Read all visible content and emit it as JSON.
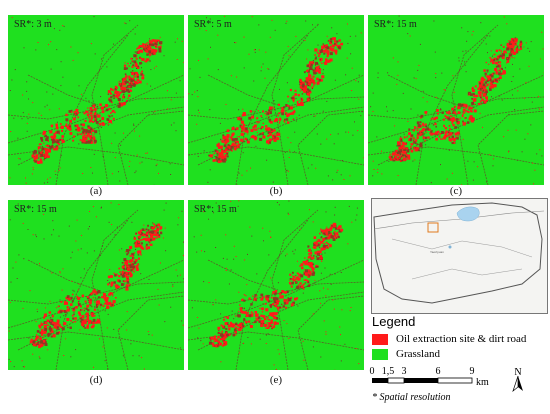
{
  "panels": [
    {
      "sr_label": "SR*: 3 m",
      "caption": "(a)"
    },
    {
      "sr_label": "SR*: 5 m",
      "caption": "(b)"
    },
    {
      "sr_label": "SR*: 15 m",
      "caption": "(c)"
    },
    {
      "sr_label": "SR*: 15 m",
      "caption": "(d)"
    },
    {
      "sr_label": "SR*: 15 m",
      "caption": "(e)"
    }
  ],
  "legend": {
    "title": "Legend",
    "items": [
      {
        "label": "Oil extraction site & dirt road",
        "color": "#ff1a1a"
      },
      {
        "label": "Grassland",
        "color": "#1fe01f"
      }
    ]
  },
  "scale_bar": {
    "ticks": [
      "0",
      "1,5",
      "3",
      "6",
      "9"
    ],
    "unit": "km"
  },
  "north_arrow": {
    "label": "N"
  },
  "footnote": "* Spatial resolution",
  "locator_map": {
    "label": "Yaoziyuan"
  }
}
